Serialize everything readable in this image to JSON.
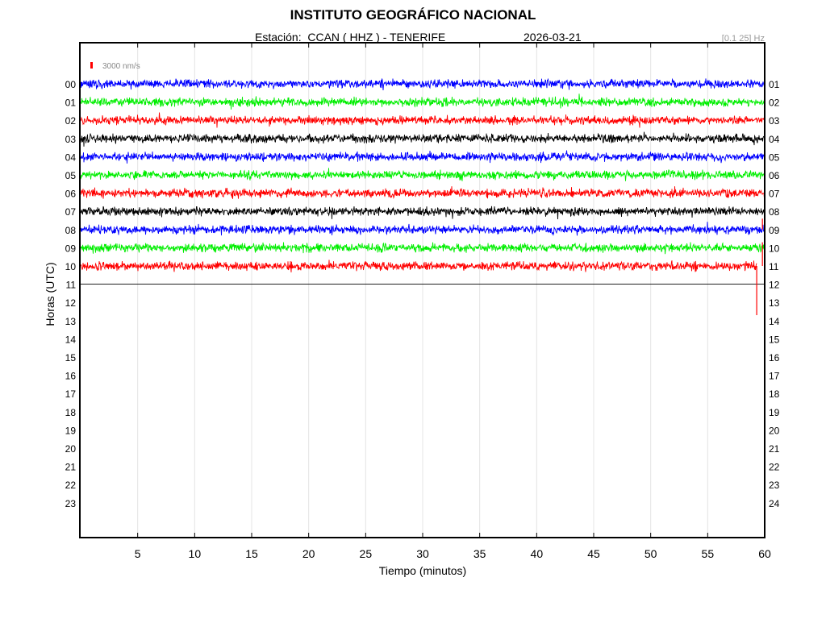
{
  "header": {
    "title": "INSTITUTO GEOGRÁFICO NACIONAL",
    "subtitle": "Estación:  CCAN ( HHZ ) - TENERIFE",
    "date": "2026-03-21",
    "filter": "[0.1 25] Hz"
  },
  "chart_data": {
    "type": "line",
    "title": "INSTITUTO GEOGRÁFICO NACIONAL",
    "xlabel": "Tiempo (minutos)",
    "ylabel": "Horas (UTC)",
    "xlim": [
      0,
      60
    ],
    "x_ticks": [
      5,
      10,
      15,
      20,
      25,
      30,
      35,
      40,
      45,
      50,
      55,
      60
    ],
    "scale_label": "3000 nm/s",
    "left_labels": [
      "00",
      "01",
      "02",
      "03",
      "04",
      "05",
      "06",
      "07",
      "08",
      "09",
      "10",
      "11",
      "12",
      "13",
      "14",
      "15",
      "16",
      "17",
      "18",
      "19",
      "20",
      "21",
      "22",
      "23"
    ],
    "right_labels": [
      "01",
      "02",
      "03",
      "04",
      "05",
      "06",
      "07",
      "08",
      "09",
      "10",
      "11",
      "12",
      "13",
      "14",
      "15",
      "16",
      "17",
      "18",
      "19",
      "20",
      "21",
      "22",
      "23",
      "24"
    ],
    "grid": true,
    "colors": [
      "#0000ff",
      "#00ee00",
      "#ff0000",
      "#000000"
    ],
    "series": [
      {
        "name": "00",
        "color": "#0000ff",
        "x_range": [
          0,
          60
        ],
        "amp_frac": 0.55
      },
      {
        "name": "01",
        "color": "#00ee00",
        "x_range": [
          0,
          60
        ],
        "amp_frac": 0.55
      },
      {
        "name": "02",
        "color": "#ff0000",
        "x_range": [
          0,
          60
        ],
        "amp_frac": 0.55
      },
      {
        "name": "03",
        "color": "#000000",
        "x_range": [
          0,
          60
        ],
        "amp_frac": 0.55
      },
      {
        "name": "04",
        "color": "#0000ff",
        "x_range": [
          0,
          60
        ],
        "amp_frac": 0.55
      },
      {
        "name": "05",
        "color": "#00ee00",
        "x_range": [
          0,
          60
        ],
        "amp_frac": 0.55
      },
      {
        "name": "06",
        "color": "#ff0000",
        "x_range": [
          0,
          60
        ],
        "amp_frac": 0.55
      },
      {
        "name": "07",
        "color": "#000000",
        "x_range": [
          0,
          60
        ],
        "amp_frac": 0.55
      },
      {
        "name": "08",
        "color": "#0000ff",
        "x_range": [
          0,
          60
        ],
        "amp_frac": 0.55
      },
      {
        "name": "09",
        "color": "#00ee00",
        "x_range": [
          0,
          60
        ],
        "amp_frac": 0.55
      },
      {
        "name": "10",
        "color": "#ff0000",
        "x_range": [
          0,
          59.3
        ],
        "amp_frac": 0.55
      },
      {
        "name": "11",
        "color": "#000000",
        "x_range": [
          0,
          60
        ],
        "amp_frac": 0
      }
    ],
    "spikes": [
      {
        "hour": 10,
        "minute": 59.3,
        "color": "#ff0000",
        "extent_hours": 2.7
      },
      {
        "hour": 10,
        "minute": 59.8,
        "color": "#ff0000",
        "extent_hours": -1.3
      },
      {
        "hour": 8,
        "minute": 59.8,
        "color": "#ff0000",
        "extent_hours": -0.6
      }
    ]
  }
}
